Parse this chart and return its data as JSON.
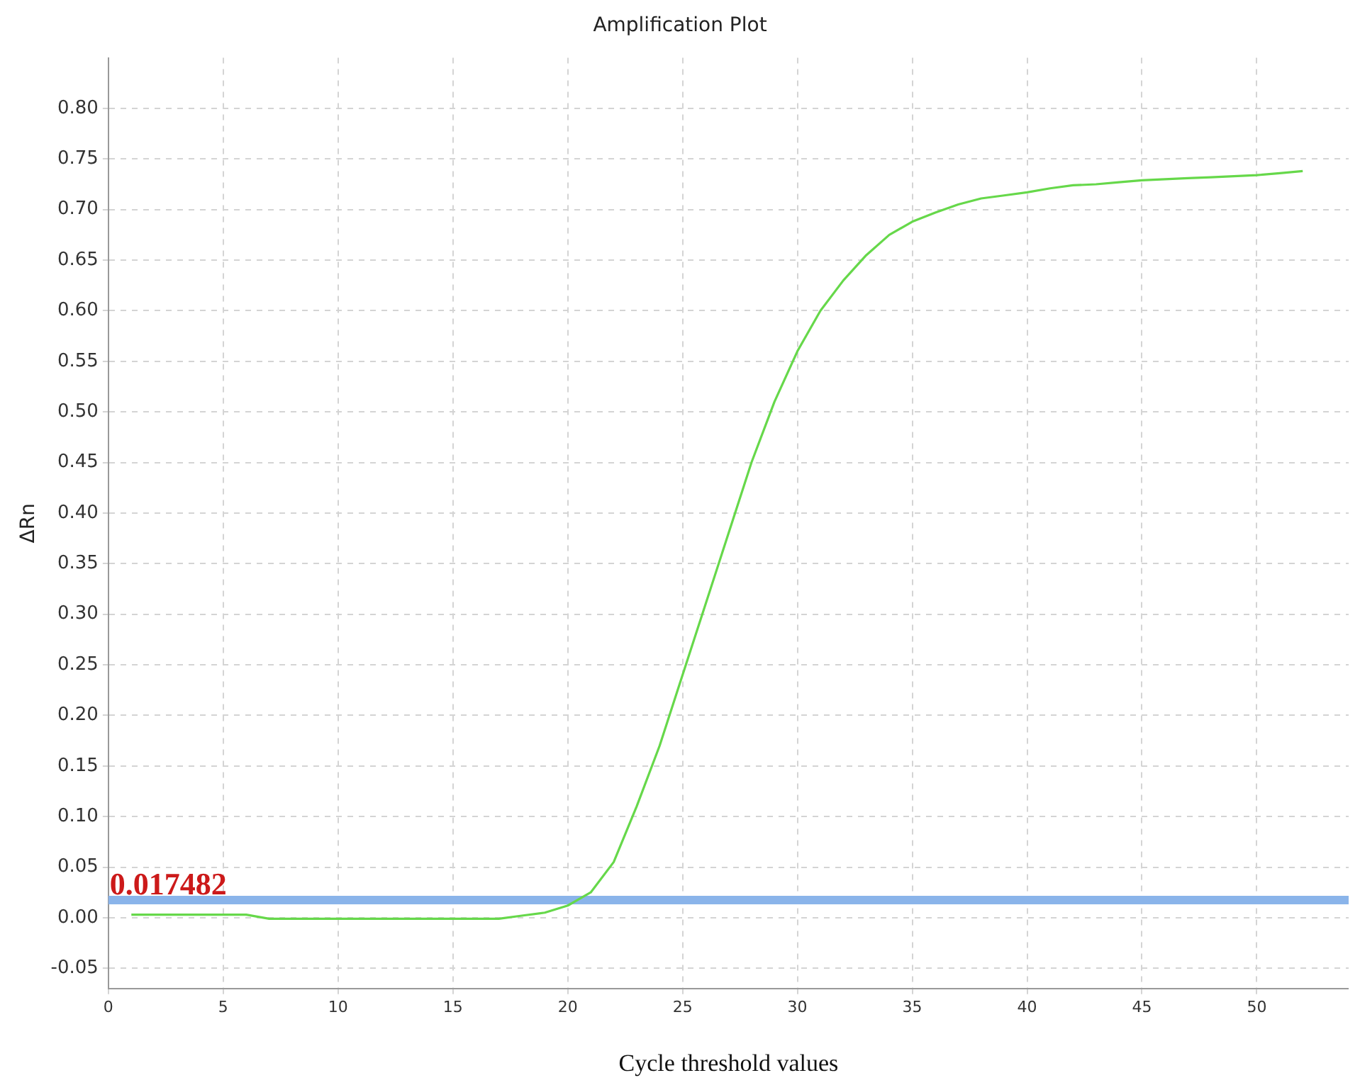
{
  "chart_data": {
    "type": "line",
    "title": "Amplification Plot",
    "xlabel": "Cycle threshold values",
    "ylabel": "ΔRn",
    "x": [
      1,
      2,
      3,
      4,
      5,
      6,
      7,
      8,
      9,
      10,
      11,
      12,
      13,
      14,
      15,
      16,
      17,
      18,
      19,
      20,
      21,
      22,
      23,
      24,
      25,
      26,
      27,
      28,
      29,
      30,
      31,
      32,
      33,
      34,
      35,
      36,
      37,
      38,
      39,
      40,
      41,
      42,
      43,
      44,
      45,
      46,
      47,
      48,
      49,
      50,
      51,
      52
    ],
    "series": [
      {
        "color": "#66d84a",
        "values": [
          0.003,
          0.003,
          0.003,
          0.003,
          0.003,
          0.003,
          -0.001,
          -0.001,
          -0.001,
          -0.001,
          -0.001,
          -0.001,
          -0.001,
          -0.001,
          -0.001,
          -0.001,
          -0.001,
          0.002,
          0.005,
          0.012,
          0.025,
          0.055,
          0.11,
          0.17,
          0.24,
          0.31,
          0.38,
          0.45,
          0.51,
          0.56,
          0.6,
          0.63,
          0.655,
          0.675,
          0.688,
          0.697,
          0.705,
          0.711,
          0.714,
          0.717,
          0.721,
          0.724,
          0.725,
          0.727,
          0.729,
          0.73,
          0.731,
          0.732,
          0.733,
          0.734,
          0.736,
          0.738
        ]
      }
    ],
    "xlim": [
      0,
      54
    ],
    "xticks": [
      0,
      5,
      10,
      15,
      20,
      25,
      30,
      35,
      40,
      45,
      50
    ],
    "ylim": [
      -0.07,
      0.85
    ],
    "yticks": [
      {
        "value": -0.05,
        "label": "-0.05"
      },
      {
        "value": 0,
        "label": "0.00"
      },
      {
        "value": 0.05,
        "label": "0.05"
      },
      {
        "value": 0.1,
        "label": "0.10"
      },
      {
        "value": 0.15,
        "label": "0.15"
      },
      {
        "value": 0.2,
        "label": "0.20"
      },
      {
        "value": 0.25,
        "label": "0.25"
      },
      {
        "value": 0.3,
        "label": "0.30"
      },
      {
        "value": 0.35,
        "label": "0.35"
      },
      {
        "value": 0.4,
        "label": "0.40"
      },
      {
        "value": 0.45,
        "label": "0.45"
      },
      {
        "value": 0.5,
        "label": "0.50"
      },
      {
        "value": 0.55,
        "label": "0.55"
      },
      {
        "value": 0.6,
        "label": "0.60"
      },
      {
        "value": 0.65,
        "label": "0.65"
      },
      {
        "value": 0.7,
        "label": "0.70"
      },
      {
        "value": 0.75,
        "label": "0.75"
      },
      {
        "value": 0.8,
        "label": "0.80"
      }
    ],
    "ref_lines": [
      {
        "axis": "y",
        "value": 0.017482,
        "label": "0.017482",
        "color": "#8ab4ea"
      }
    ],
    "grid": true,
    "legend": false,
    "marker": "none",
    "line_style": "solid"
  }
}
